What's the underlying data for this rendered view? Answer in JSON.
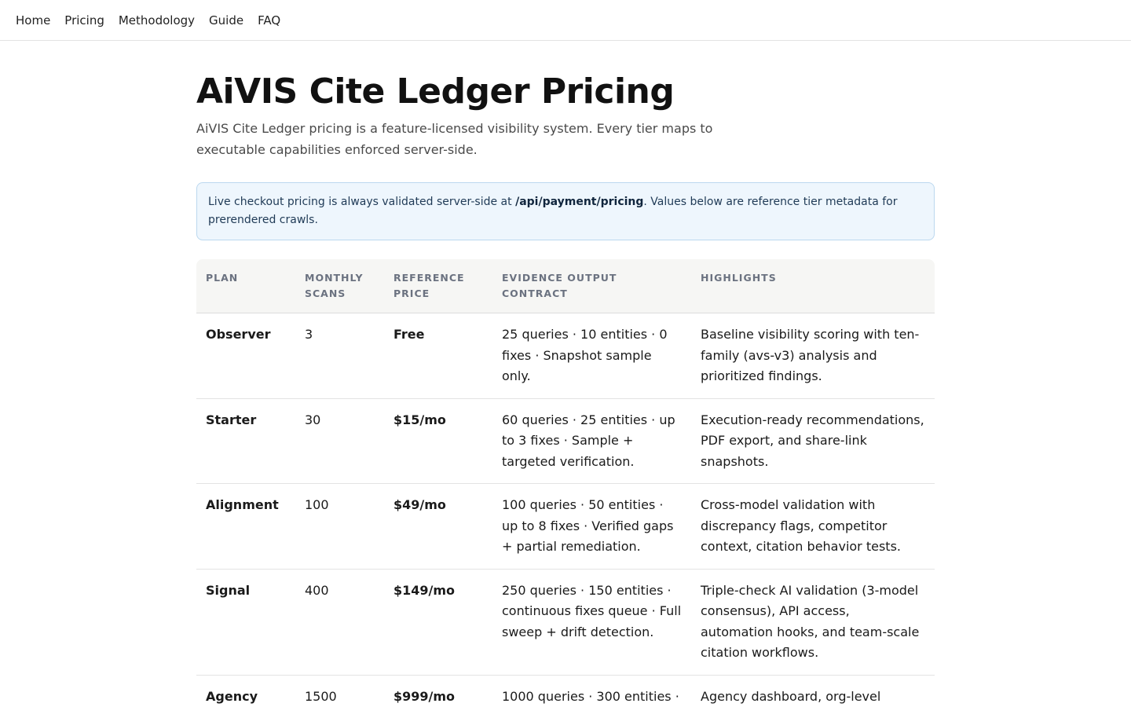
{
  "nav": {
    "items": [
      "Home",
      "Pricing",
      "Methodology",
      "Guide",
      "FAQ"
    ]
  },
  "page": {
    "title": "AiVIS Cite Ledger Pricing",
    "subtitle": "AiVIS Cite Ledger pricing is a feature-licensed visibility system. Every tier maps to executable capabilities enforced server-side."
  },
  "notice": {
    "prefix": "Live checkout pricing is always validated server-side at ",
    "endpoint": "/api/payment/pricing",
    "suffix": ". Values below are reference tier metadata for prerendered crawls."
  },
  "table": {
    "headers": [
      "PLAN",
      "MONTHLY SCANS",
      "REFERENCE PRICE",
      "EVIDENCE OUTPUT CONTRACT",
      "HIGHLIGHTS"
    ],
    "rows": [
      {
        "plan": "Observer",
        "scans": "3",
        "price": "Free",
        "contract": "25 queries · 10 entities · 0 fixes · Snapshot sample only.",
        "highlights": "Baseline visibility scoring with ten-family (avs-v3) analysis and prioritized findings."
      },
      {
        "plan": "Starter",
        "scans": "30",
        "price": "$15/mo",
        "contract": "60 queries · 25 entities · up to 3 fixes · Sample + targeted verification.",
        "highlights": "Execution-ready recommendations, PDF export, and share-link snapshots."
      },
      {
        "plan": "Alignment",
        "scans": "100",
        "price": "$49/mo",
        "contract": "100 queries · 50 entities · up to 8 fixes · Verified gaps + partial remediation.",
        "highlights": "Cross-model validation with discrepancy flags, competitor context, citation behavior tests."
      },
      {
        "plan": "Signal",
        "scans": "400",
        "price": "$149/mo",
        "contract": "250 queries · 150 entities · continuous fixes queue · Full sweep + drift detection.",
        "highlights": "Triple-check AI validation (3-model consensus), API access, automation hooks, and team-scale citation workflows."
      },
      {
        "plan": "Agency",
        "scans": "1500",
        "price": "$999/mo",
        "contract": "1000 queries · 300 entities ·",
        "highlights": "Agency dashboard, org-level"
      }
    ]
  }
}
